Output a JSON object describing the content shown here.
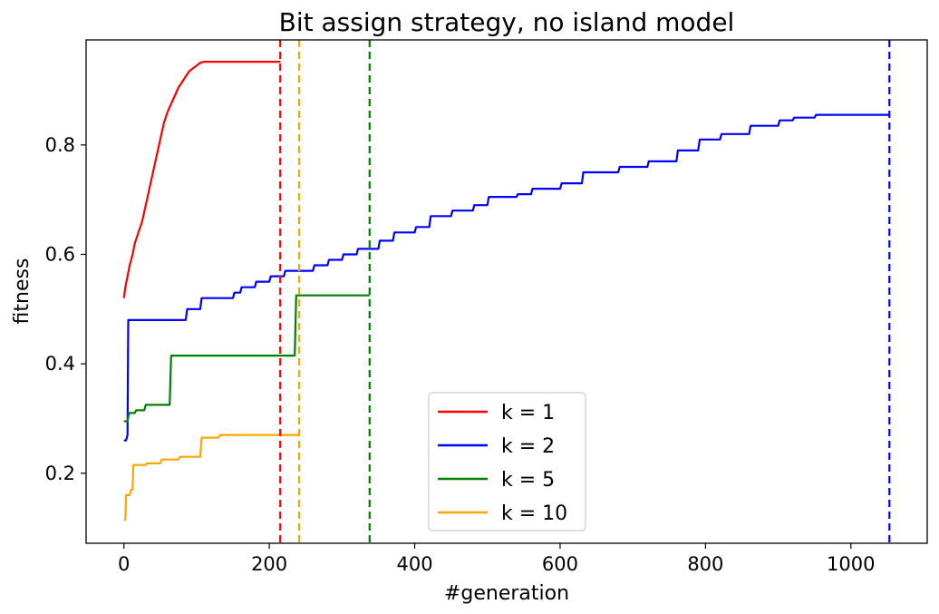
{
  "chart_data": {
    "type": "line",
    "title": "Bit assign strategy, no island model",
    "xlabel": "#generation",
    "ylabel": "fitness",
    "xlim": [
      -52,
      1105
    ],
    "ylim": [
      0.072,
      0.992
    ],
    "xticks": [
      0,
      200,
      400,
      600,
      800,
      1000
    ],
    "xtick_labels": [
      "0",
      "200",
      "400",
      "600",
      "800",
      "1000"
    ],
    "yticks": [
      0.2,
      0.4,
      0.6,
      0.8
    ],
    "ytick_labels": [
      "0.2",
      "0.4",
      "0.6",
      "0.8"
    ],
    "grid": false,
    "legend_position": "lower-center",
    "series": [
      {
        "name": "k = 1",
        "color": "#ff0000",
        "end_generation": 215,
        "points": [
          [
            0,
            0.52
          ],
          [
            2,
            0.54
          ],
          [
            5,
            0.56
          ],
          [
            8,
            0.58
          ],
          [
            12,
            0.6
          ],
          [
            15,
            0.62
          ],
          [
            20,
            0.64
          ],
          [
            25,
            0.66
          ],
          [
            30,
            0.69
          ],
          [
            35,
            0.72
          ],
          [
            40,
            0.75
          ],
          [
            45,
            0.78
          ],
          [
            50,
            0.81
          ],
          [
            55,
            0.84
          ],
          [
            60,
            0.86
          ],
          [
            65,
            0.875
          ],
          [
            70,
            0.89
          ],
          [
            75,
            0.905
          ],
          [
            80,
            0.915
          ],
          [
            85,
            0.925
          ],
          [
            90,
            0.935
          ],
          [
            95,
            0.94
          ],
          [
            100,
            0.945
          ],
          [
            105,
            0.95
          ],
          [
            110,
            0.952
          ],
          [
            215,
            0.952
          ]
        ]
      },
      {
        "name": "k = 2",
        "color": "#0000ff",
        "end_generation": 1053,
        "points": [
          [
            0,
            0.26
          ],
          [
            3,
            0.26
          ],
          [
            5,
            0.27
          ],
          [
            6,
            0.48
          ],
          [
            85,
            0.48
          ],
          [
            87,
            0.5
          ],
          [
            105,
            0.5
          ],
          [
            107,
            0.52
          ],
          [
            150,
            0.52
          ],
          [
            152,
            0.53
          ],
          [
            160,
            0.53
          ],
          [
            162,
            0.54
          ],
          [
            180,
            0.54
          ],
          [
            182,
            0.55
          ],
          [
            200,
            0.55
          ],
          [
            202,
            0.56
          ],
          [
            220,
            0.56
          ],
          [
            222,
            0.57
          ],
          [
            260,
            0.57
          ],
          [
            262,
            0.58
          ],
          [
            280,
            0.58
          ],
          [
            282,
            0.59
          ],
          [
            300,
            0.59
          ],
          [
            302,
            0.6
          ],
          [
            320,
            0.6
          ],
          [
            322,
            0.61
          ],
          [
            350,
            0.61
          ],
          [
            352,
            0.625
          ],
          [
            370,
            0.625
          ],
          [
            372,
            0.64
          ],
          [
            400,
            0.64
          ],
          [
            402,
            0.65
          ],
          [
            420,
            0.65
          ],
          [
            422,
            0.67
          ],
          [
            450,
            0.67
          ],
          [
            452,
            0.68
          ],
          [
            480,
            0.68
          ],
          [
            482,
            0.69
          ],
          [
            500,
            0.69
          ],
          [
            502,
            0.705
          ],
          [
            540,
            0.705
          ],
          [
            542,
            0.71
          ],
          [
            560,
            0.71
          ],
          [
            562,
            0.72
          ],
          [
            600,
            0.72
          ],
          [
            602,
            0.73
          ],
          [
            630,
            0.73
          ],
          [
            632,
            0.75
          ],
          [
            680,
            0.75
          ],
          [
            682,
            0.76
          ],
          [
            720,
            0.76
          ],
          [
            722,
            0.77
          ],
          [
            760,
            0.77
          ],
          [
            762,
            0.79
          ],
          [
            790,
            0.79
          ],
          [
            792,
            0.81
          ],
          [
            820,
            0.81
          ],
          [
            822,
            0.82
          ],
          [
            860,
            0.82
          ],
          [
            862,
            0.835
          ],
          [
            900,
            0.835
          ],
          [
            902,
            0.845
          ],
          [
            920,
            0.845
          ],
          [
            922,
            0.85
          ],
          [
            950,
            0.85
          ],
          [
            952,
            0.855
          ],
          [
            1053,
            0.855
          ]
        ]
      },
      {
        "name": "k = 5",
        "color": "#008000",
        "end_generation": 338,
        "points": [
          [
            0,
            0.295
          ],
          [
            5,
            0.295
          ],
          [
            7,
            0.31
          ],
          [
            15,
            0.31
          ],
          [
            17,
            0.315
          ],
          [
            28,
            0.315
          ],
          [
            30,
            0.325
          ],
          [
            63,
            0.325
          ],
          [
            65,
            0.415
          ],
          [
            235,
            0.415
          ],
          [
            237,
            0.525
          ],
          [
            338,
            0.525
          ]
        ]
      },
      {
        "name": "k = 10",
        "color": "#ffa500",
        "end_generation": 241,
        "points": [
          [
            0,
            0.115
          ],
          [
            2,
            0.115
          ],
          [
            3,
            0.16
          ],
          [
            8,
            0.16
          ],
          [
            10,
            0.17
          ],
          [
            12,
            0.17
          ],
          [
            13,
            0.215
          ],
          [
            30,
            0.215
          ],
          [
            32,
            0.218
          ],
          [
            50,
            0.218
          ],
          [
            52,
            0.225
          ],
          [
            75,
            0.225
          ],
          [
            77,
            0.23
          ],
          [
            105,
            0.23
          ],
          [
            107,
            0.265
          ],
          [
            130,
            0.265
          ],
          [
            132,
            0.27
          ],
          [
            241,
            0.27
          ]
        ]
      }
    ]
  }
}
